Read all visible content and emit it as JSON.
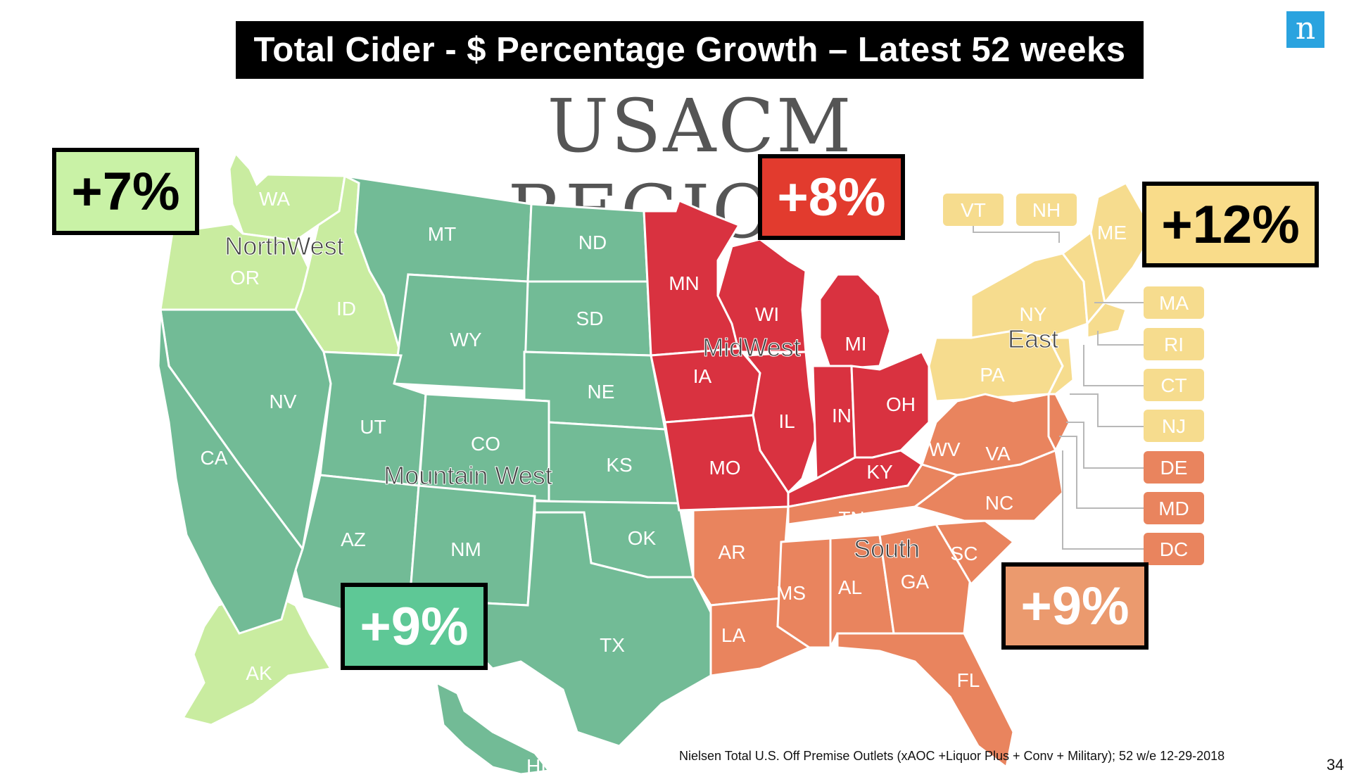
{
  "title": "Total Cider - $ Percentage Growth – Latest 52 weeks",
  "heading": "USACM REGIONS",
  "logo": "n",
  "page_number": "34",
  "source_note": "Nielsen Total U.S. Off Premise Outlets (xAOC +Liquor Plus + Conv + Military); 52 w/e  12-29-2018",
  "regions": {
    "northwest": {
      "name": "NorthWest",
      "growth": "+7%",
      "color": "#c9eca0",
      "box_color": "#c9f2a6"
    },
    "mountain_west": {
      "name": "Mountain West",
      "growth": "+9%",
      "color": "#72bb96",
      "box_color": "#5ec896"
    },
    "midwest": {
      "name": "MidWest",
      "growth": "+8%",
      "color": "#d93240",
      "box_color": "#e23b2e"
    },
    "east": {
      "name": "East",
      "growth": "+12%",
      "color": "#f6dc8e",
      "box_color": "#f9dc8a"
    },
    "south": {
      "name": "South",
      "growth": "+9%",
      "color": "#e9845e",
      "box_color": "#eb9a6e"
    }
  },
  "states": {
    "WA": "WA",
    "OR": "OR",
    "ID": "ID",
    "AK": "AK",
    "MT": "MT",
    "ND": "ND",
    "SD": "SD",
    "WY": "WY",
    "NE": "NE",
    "NV": "NV",
    "UT": "UT",
    "CO": "CO",
    "KS": "KS",
    "CA": "CA",
    "AZ": "AZ",
    "NM": "NM",
    "OK": "OK",
    "TX": "TX",
    "HI": "HI",
    "MN": "MN",
    "WI": "WI",
    "MI": "MI",
    "IA": "IA",
    "IL": "IL",
    "IN": "IN",
    "OH": "OH",
    "MO": "MO",
    "KY": "KY",
    "VT": "VT",
    "NH": "NH",
    "ME": "ME",
    "NY": "NY",
    "PA": "PA",
    "MA": "MA",
    "RI": "RI",
    "CT": "CT",
    "NJ": "NJ",
    "DE": "DE",
    "MD": "MD",
    "DC": "DC",
    "WV": "WV",
    "VA": "VA",
    "NC": "NC",
    "TN": "TN",
    "SC": "SC",
    "AR": "AR",
    "MS": "MS",
    "AL": "AL",
    "GA": "GA",
    "LA": "LA",
    "FL": "FL"
  }
}
